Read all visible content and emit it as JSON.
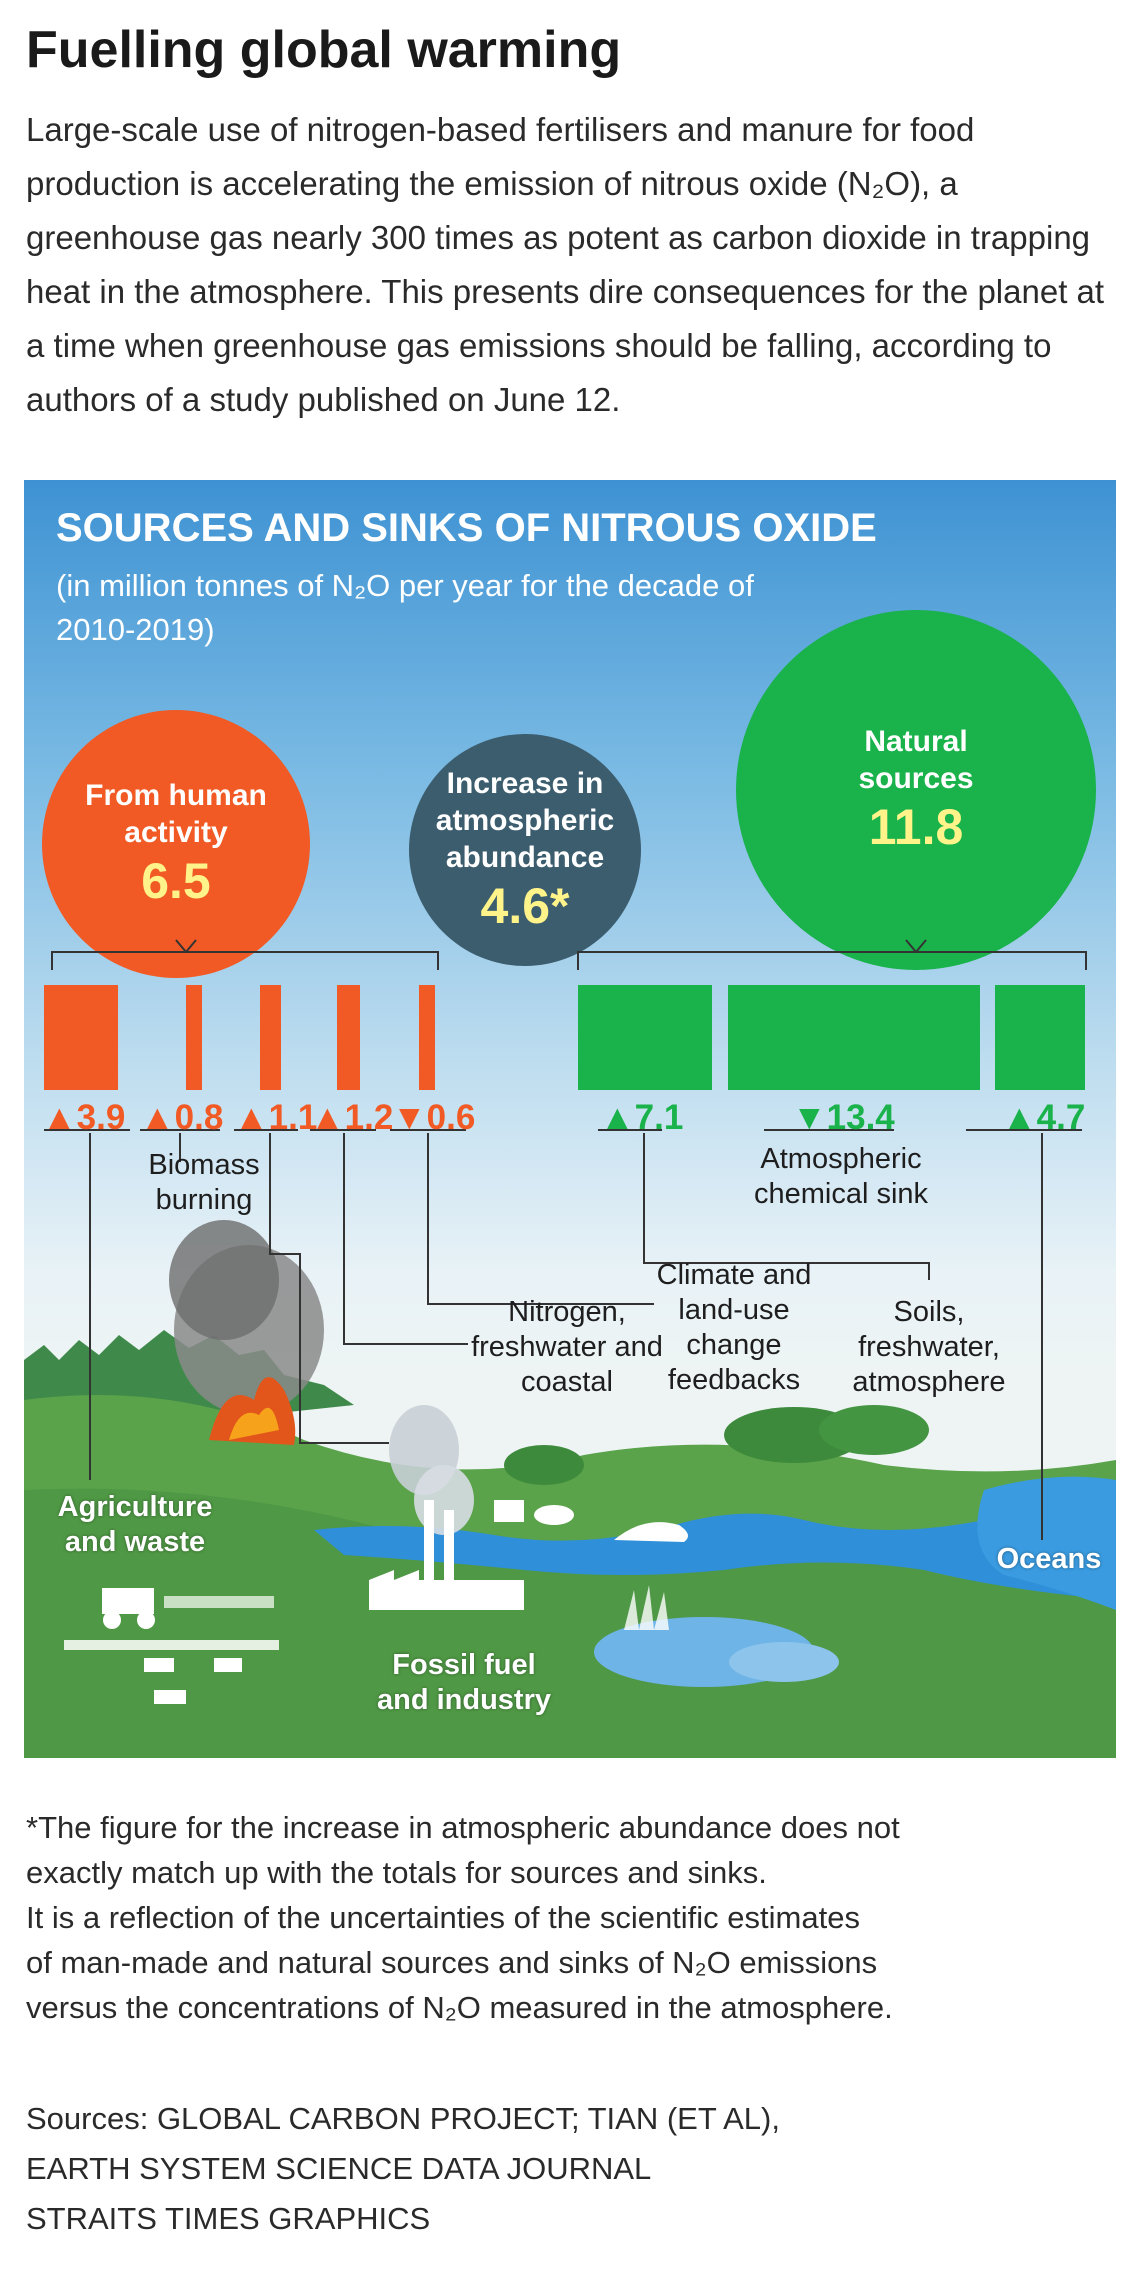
{
  "headline": "Fuelling global warming",
  "intro": "Large-scale use of nitrogen-based fertilisers and manure for food production is accelerating the emission of nitrous oxide (N₂O), a greenhouse gas nearly 300 times as potent as carbon dioxide in trapping heat in the atmosphere. This presents dire consequences for the planet at a time when greenhouse gas emissions should be falling, according to authors of a study published on June 12.",
  "panel": {
    "title": "SOURCES AND SINKS OF NITROUS OXIDE",
    "subtitle": "(in million tonnes of N₂O per year for the decade of 2010-2019)"
  },
  "circles": {
    "human": {
      "label": "From human activity",
      "value": "6.5",
      "color": "#f15a24"
    },
    "abundance": {
      "label": "Increase in atmospheric abundance",
      "value": "4.6*",
      "color": "#3c5d6e"
    },
    "natural": {
      "label": "Natural sources",
      "value": "11.8",
      "color": "#19b24b"
    }
  },
  "human_bars": [
    {
      "value": 3.9,
      "display": "▲3.9",
      "label": "Agriculture and waste"
    },
    {
      "value": 0.8,
      "display": "▲0.8",
      "label": "Biomass burning"
    },
    {
      "value": 1.1,
      "display": "▲1.1",
      "label": "Fossil fuel and industry"
    },
    {
      "value": 1.2,
      "display": "▲1.2",
      "label": "Nitrogen, freshwater and coastal"
    },
    {
      "value": 0.6,
      "display": "▼0.6",
      "label": "Climate and land-use change feedbacks"
    }
  ],
  "natural_bars": [
    {
      "value": 7.1,
      "display": "▲7.1",
      "label": "Soils, freshwater, atmosphere"
    },
    {
      "value": 13.4,
      "display": "▼13.4",
      "label": "Atmospheric chemical sink"
    },
    {
      "value": 4.7,
      "display": "▲4.7",
      "label": "Oceans"
    }
  ],
  "colors": {
    "human": "#f15a24",
    "natural": "#19b24b"
  },
  "footnote": [
    "*The figure for the increase in atmospheric abundance does not",
    "exactly match up with the totals for sources and sinks.",
    "It is a reflection of the uncertainties of the scientific estimates",
    "of man-made and natural sources and sinks of N₂O emissions",
    "versus the concentrations of N₂O measured in the atmosphere."
  ],
  "sources": [
    "Sources: GLOBAL CARBON PROJECT; TIAN (ET AL),",
    "EARTH SYSTEM SCIENCE DATA JOURNAL",
    "STRAITS TIMES GRAPHICS"
  ]
}
